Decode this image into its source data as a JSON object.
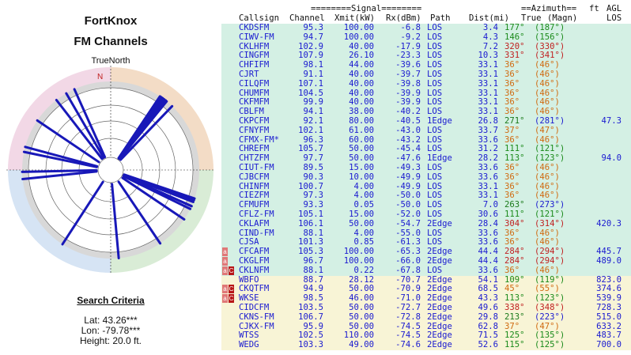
{
  "title": "FortKnox",
  "subtitle": "FM Channels",
  "north_label": "TrueNorth",
  "north_letter": "N",
  "search_title": "Search Criteria",
  "lat": "Lat: 43.26***",
  "lon": "Lon: -79.78***",
  "height": "Height: 20.0 ft.",
  "headers": {
    "signal": "========Signal========",
    "azimuth": "==Azimuth==",
    "ft": "ft",
    "agl": "AGL",
    "callsign": "Callsign",
    "channel": "Channel",
    "xmit": "Xmit(kW)",
    "rx": "Rx(dBm)",
    "path": "Path",
    "dist": "Dist(mi)",
    "true": "True",
    "magn": "(Magn)",
    "los": "LOS"
  },
  "rows": [
    {
      "cs": "CKDSFM",
      "ch": "95.3",
      "xm": "100.00",
      "rx": "-6.8",
      "pa": "LOS",
      "di": "3.4",
      "tr": "177°",
      "mg": "(187°)",
      "agl": "",
      "bg": "g",
      "col": "g",
      "b": ""
    },
    {
      "cs": "CIWV-FM",
      "ch": "94.7",
      "xm": "100.00",
      "rx": "-9.2",
      "pa": "LOS",
      "di": "4.3",
      "tr": "146°",
      "mg": "(156°)",
      "agl": "",
      "bg": "g",
      "col": "g",
      "b": ""
    },
    {
      "cs": "CKLHFM",
      "ch": "102.9",
      "xm": "40.00",
      "rx": "-17.9",
      "pa": "LOS",
      "di": "7.2",
      "tr": "320°",
      "mg": "(330°)",
      "agl": "",
      "bg": "g",
      "col": "r",
      "b": ""
    },
    {
      "cs": "CINGFM",
      "ch": "107.9",
      "xm": "26.10",
      "rx": "-23.3",
      "pa": "LOS",
      "di": "10.3",
      "tr": "331°",
      "mg": "(341°)",
      "agl": "",
      "bg": "g",
      "col": "r",
      "b": ""
    },
    {
      "cs": "CHFIFM",
      "ch": "98.1",
      "xm": "44.00",
      "rx": "-39.6",
      "pa": "LOS",
      "di": "33.1",
      "tr": "36°",
      "mg": "(46°)",
      "agl": "",
      "bg": "g",
      "col": "o",
      "b": ""
    },
    {
      "cs": "CJRT",
      "ch": "91.1",
      "xm": "40.00",
      "rx": "-39.7",
      "pa": "LOS",
      "di": "33.1",
      "tr": "36°",
      "mg": "(46°)",
      "agl": "",
      "bg": "g",
      "col": "o",
      "b": ""
    },
    {
      "cs": "CILQFM",
      "ch": "107.1",
      "xm": "40.00",
      "rx": "-39.8",
      "pa": "LOS",
      "di": "33.1",
      "tr": "36°",
      "mg": "(46°)",
      "agl": "",
      "bg": "g",
      "col": "o",
      "b": ""
    },
    {
      "cs": "CHUMFM",
      "ch": "104.5",
      "xm": "40.00",
      "rx": "-39.9",
      "pa": "LOS",
      "di": "33.1",
      "tr": "36°",
      "mg": "(46°)",
      "agl": "",
      "bg": "g",
      "col": "o",
      "b": ""
    },
    {
      "cs": "CKFMFM",
      "ch": "99.9",
      "xm": "40.00",
      "rx": "-39.9",
      "pa": "LOS",
      "di": "33.1",
      "tr": "36°",
      "mg": "(46°)",
      "agl": "",
      "bg": "g",
      "col": "o",
      "b": ""
    },
    {
      "cs": "CBLFM",
      "ch": "94.1",
      "xm": "38.00",
      "rx": "-40.2",
      "pa": "LOS",
      "di": "33.1",
      "tr": "36°",
      "mg": "(46°)",
      "agl": "",
      "bg": "g",
      "col": "o",
      "b": ""
    },
    {
      "cs": "CKPCFM",
      "ch": "92.1",
      "xm": "80.00",
      "rx": "-40.5",
      "pa": "1Edge",
      "di": "26.8",
      "tr": "271°",
      "mg": "(281°)",
      "agl": "47.3",
      "bg": "g",
      "col": "b",
      "b": ""
    },
    {
      "cs": "CFNYFM",
      "ch": "102.1",
      "xm": "61.00",
      "rx": "-43.0",
      "pa": "LOS",
      "di": "33.7",
      "tr": "37°",
      "mg": "(47°)",
      "agl": "",
      "bg": "g",
      "col": "o",
      "b": ""
    },
    {
      "cs": "CFMX-FM*",
      "ch": "96.3",
      "xm": "60.00",
      "rx": "-43.2",
      "pa": "LOS",
      "di": "33.6",
      "tr": "36°",
      "mg": "(46°)",
      "agl": "",
      "bg": "g",
      "col": "o",
      "b": ""
    },
    {
      "cs": "CHREFM",
      "ch": "105.7",
      "xm": "50.00",
      "rx": "-45.4",
      "pa": "LOS",
      "di": "31.2",
      "tr": "111°",
      "mg": "(121°)",
      "agl": "",
      "bg": "g",
      "col": "g",
      "b": ""
    },
    {
      "cs": "CHTZFM",
      "ch": "97.7",
      "xm": "50.00",
      "rx": "-47.6",
      "pa": "1Edge",
      "di": "28.2",
      "tr": "113°",
      "mg": "(123°)",
      "agl": "94.0",
      "bg": "g",
      "col": "g",
      "b": ""
    },
    {
      "cs": "CIUT-FM",
      "ch": "89.5",
      "xm": "15.00",
      "rx": "-49.3",
      "pa": "LOS",
      "di": "33.6",
      "tr": "36°",
      "mg": "(46°)",
      "agl": "",
      "bg": "g",
      "col": "o",
      "b": ""
    },
    {
      "cs": "CJBCFM",
      "ch": "90.3",
      "xm": "10.00",
      "rx": "-49.9",
      "pa": "LOS",
      "di": "33.6",
      "tr": "36°",
      "mg": "(46°)",
      "agl": "",
      "bg": "g",
      "col": "o",
      "b": ""
    },
    {
      "cs": "CHINFM",
      "ch": "100.7",
      "xm": "4.00",
      "rx": "-49.9",
      "pa": "LOS",
      "di": "33.1",
      "tr": "36°",
      "mg": "(46°)",
      "agl": "",
      "bg": "g",
      "col": "o",
      "b": ""
    },
    {
      "cs": "CIEZFM",
      "ch": "97.3",
      "xm": "4.00",
      "rx": "-50.0",
      "pa": "LOS",
      "di": "33.1",
      "tr": "36°",
      "mg": "(46°)",
      "agl": "",
      "bg": "g",
      "col": "o",
      "b": ""
    },
    {
      "cs": "CFMUFM",
      "ch": "93.3",
      "xm": "0.05",
      "rx": "-50.0",
      "pa": "LOS",
      "di": "7.0",
      "tr": "263°",
      "mg": "(273°)",
      "agl": "",
      "bg": "g",
      "col": "b",
      "b": ""
    },
    {
      "cs": "CFLZ-FM",
      "ch": "105.1",
      "xm": "15.00",
      "rx": "-52.0",
      "pa": "LOS",
      "di": "30.6",
      "tr": "111°",
      "mg": "(121°)",
      "agl": "",
      "bg": "g",
      "col": "g",
      "b": ""
    },
    {
      "cs": "CKLAFM",
      "ch": "106.1",
      "xm": "50.00",
      "rx": "-54.7",
      "pa": "2Edge",
      "di": "28.4",
      "tr": "304°",
      "mg": "(314°)",
      "agl": "420.3",
      "bg": "g",
      "col": "r",
      "b": ""
    },
    {
      "cs": "CIND-FM",
      "ch": "88.1",
      "xm": "4.00",
      "rx": "-55.0",
      "pa": "LOS",
      "di": "33.6",
      "tr": "36°",
      "mg": "(46°)",
      "agl": "",
      "bg": "g",
      "col": "o",
      "b": ""
    },
    {
      "cs": "CJSA",
      "ch": "101.3",
      "xm": "0.85",
      "rx": "-61.3",
      "pa": "LOS",
      "di": "33.6",
      "tr": "36°",
      "mg": "(46°)",
      "agl": "",
      "bg": "g",
      "col": "o",
      "b": ""
    },
    {
      "cs": "CFCAFM",
      "ch": "105.3",
      "xm": "100.00",
      "rx": "-65.3",
      "pa": "2Edge",
      "di": "44.4",
      "tr": "284°",
      "mg": "(294°)",
      "agl": "445.7",
      "bg": "g",
      "col": "r",
      "b": "a"
    },
    {
      "cs": "CKGLFM",
      "ch": "96.7",
      "xm": "100.00",
      "rx": "-66.0",
      "pa": "2Edge",
      "di": "44.4",
      "tr": "284°",
      "mg": "(294°)",
      "agl": "489.0",
      "bg": "g",
      "col": "r",
      "b": "a"
    },
    {
      "cs": "CKLNFM",
      "ch": "88.1",
      "xm": "0.22",
      "rx": "-67.8",
      "pa": "LOS",
      "di": "33.6",
      "tr": "36°",
      "mg": "(46°)",
      "agl": "",
      "bg": "g",
      "col": "o",
      "b": "ac"
    },
    {
      "cs": "WBFO",
      "ch": "88.7",
      "xm": "28.12",
      "rx": "-70.7",
      "pa": "2Edge",
      "di": "54.1",
      "tr": "109°",
      "mg": "(119°)",
      "agl": "823.0",
      "bg": "y",
      "col": "g",
      "b": ""
    },
    {
      "cs": "CKQTFM",
      "ch": "94.9",
      "xm": "50.00",
      "rx": "-70.9",
      "pa": "2Edge",
      "di": "68.5",
      "tr": "45°",
      "mg": "(55°)",
      "agl": "374.6",
      "bg": "y",
      "col": "o",
      "b": "ac"
    },
    {
      "cs": "WKSE",
      "ch": "98.5",
      "xm": "46.00",
      "rx": "-71.0",
      "pa": "2Edge",
      "di": "43.3",
      "tr": "113°",
      "mg": "(123°)",
      "agl": "539.9",
      "bg": "y",
      "col": "g",
      "b": "ac"
    },
    {
      "cs": "CIDCFM",
      "ch": "103.5",
      "xm": "50.00",
      "rx": "-72.7",
      "pa": "2Edge",
      "di": "49.6",
      "tr": "338°",
      "mg": "(348°)",
      "agl": "728.3",
      "bg": "y",
      "col": "r",
      "b": ""
    },
    {
      "cs": "CKNS-FM",
      "ch": "106.7",
      "xm": "50.00",
      "rx": "-72.8",
      "pa": "2Edge",
      "di": "29.8",
      "tr": "213°",
      "mg": "(223°)",
      "agl": "515.0",
      "bg": "y",
      "col": "b",
      "b": ""
    },
    {
      "cs": "CJKX-FM",
      "ch": "95.9",
      "xm": "50.00",
      "rx": "-74.5",
      "pa": "2Edge",
      "di": "62.8",
      "tr": "37°",
      "mg": "(47°)",
      "agl": "633.2",
      "bg": "y",
      "col": "o",
      "b": ""
    },
    {
      "cs": "WTSS",
      "ch": "102.5",
      "xm": "110.00",
      "rx": "-74.5",
      "pa": "2Edge",
      "di": "71.5",
      "tr": "125°",
      "mg": "(135°)",
      "agl": "483.7",
      "bg": "y",
      "col": "g",
      "b": ""
    },
    {
      "cs": "WEDG",
      "ch": "103.3",
      "xm": "49.00",
      "rx": "-74.6",
      "pa": "2Edge",
      "di": "52.6",
      "tr": "115°",
      "mg": "(125°)",
      "agl": "700.0",
      "bg": "y",
      "col": "g",
      "b": ""
    }
  ]
}
